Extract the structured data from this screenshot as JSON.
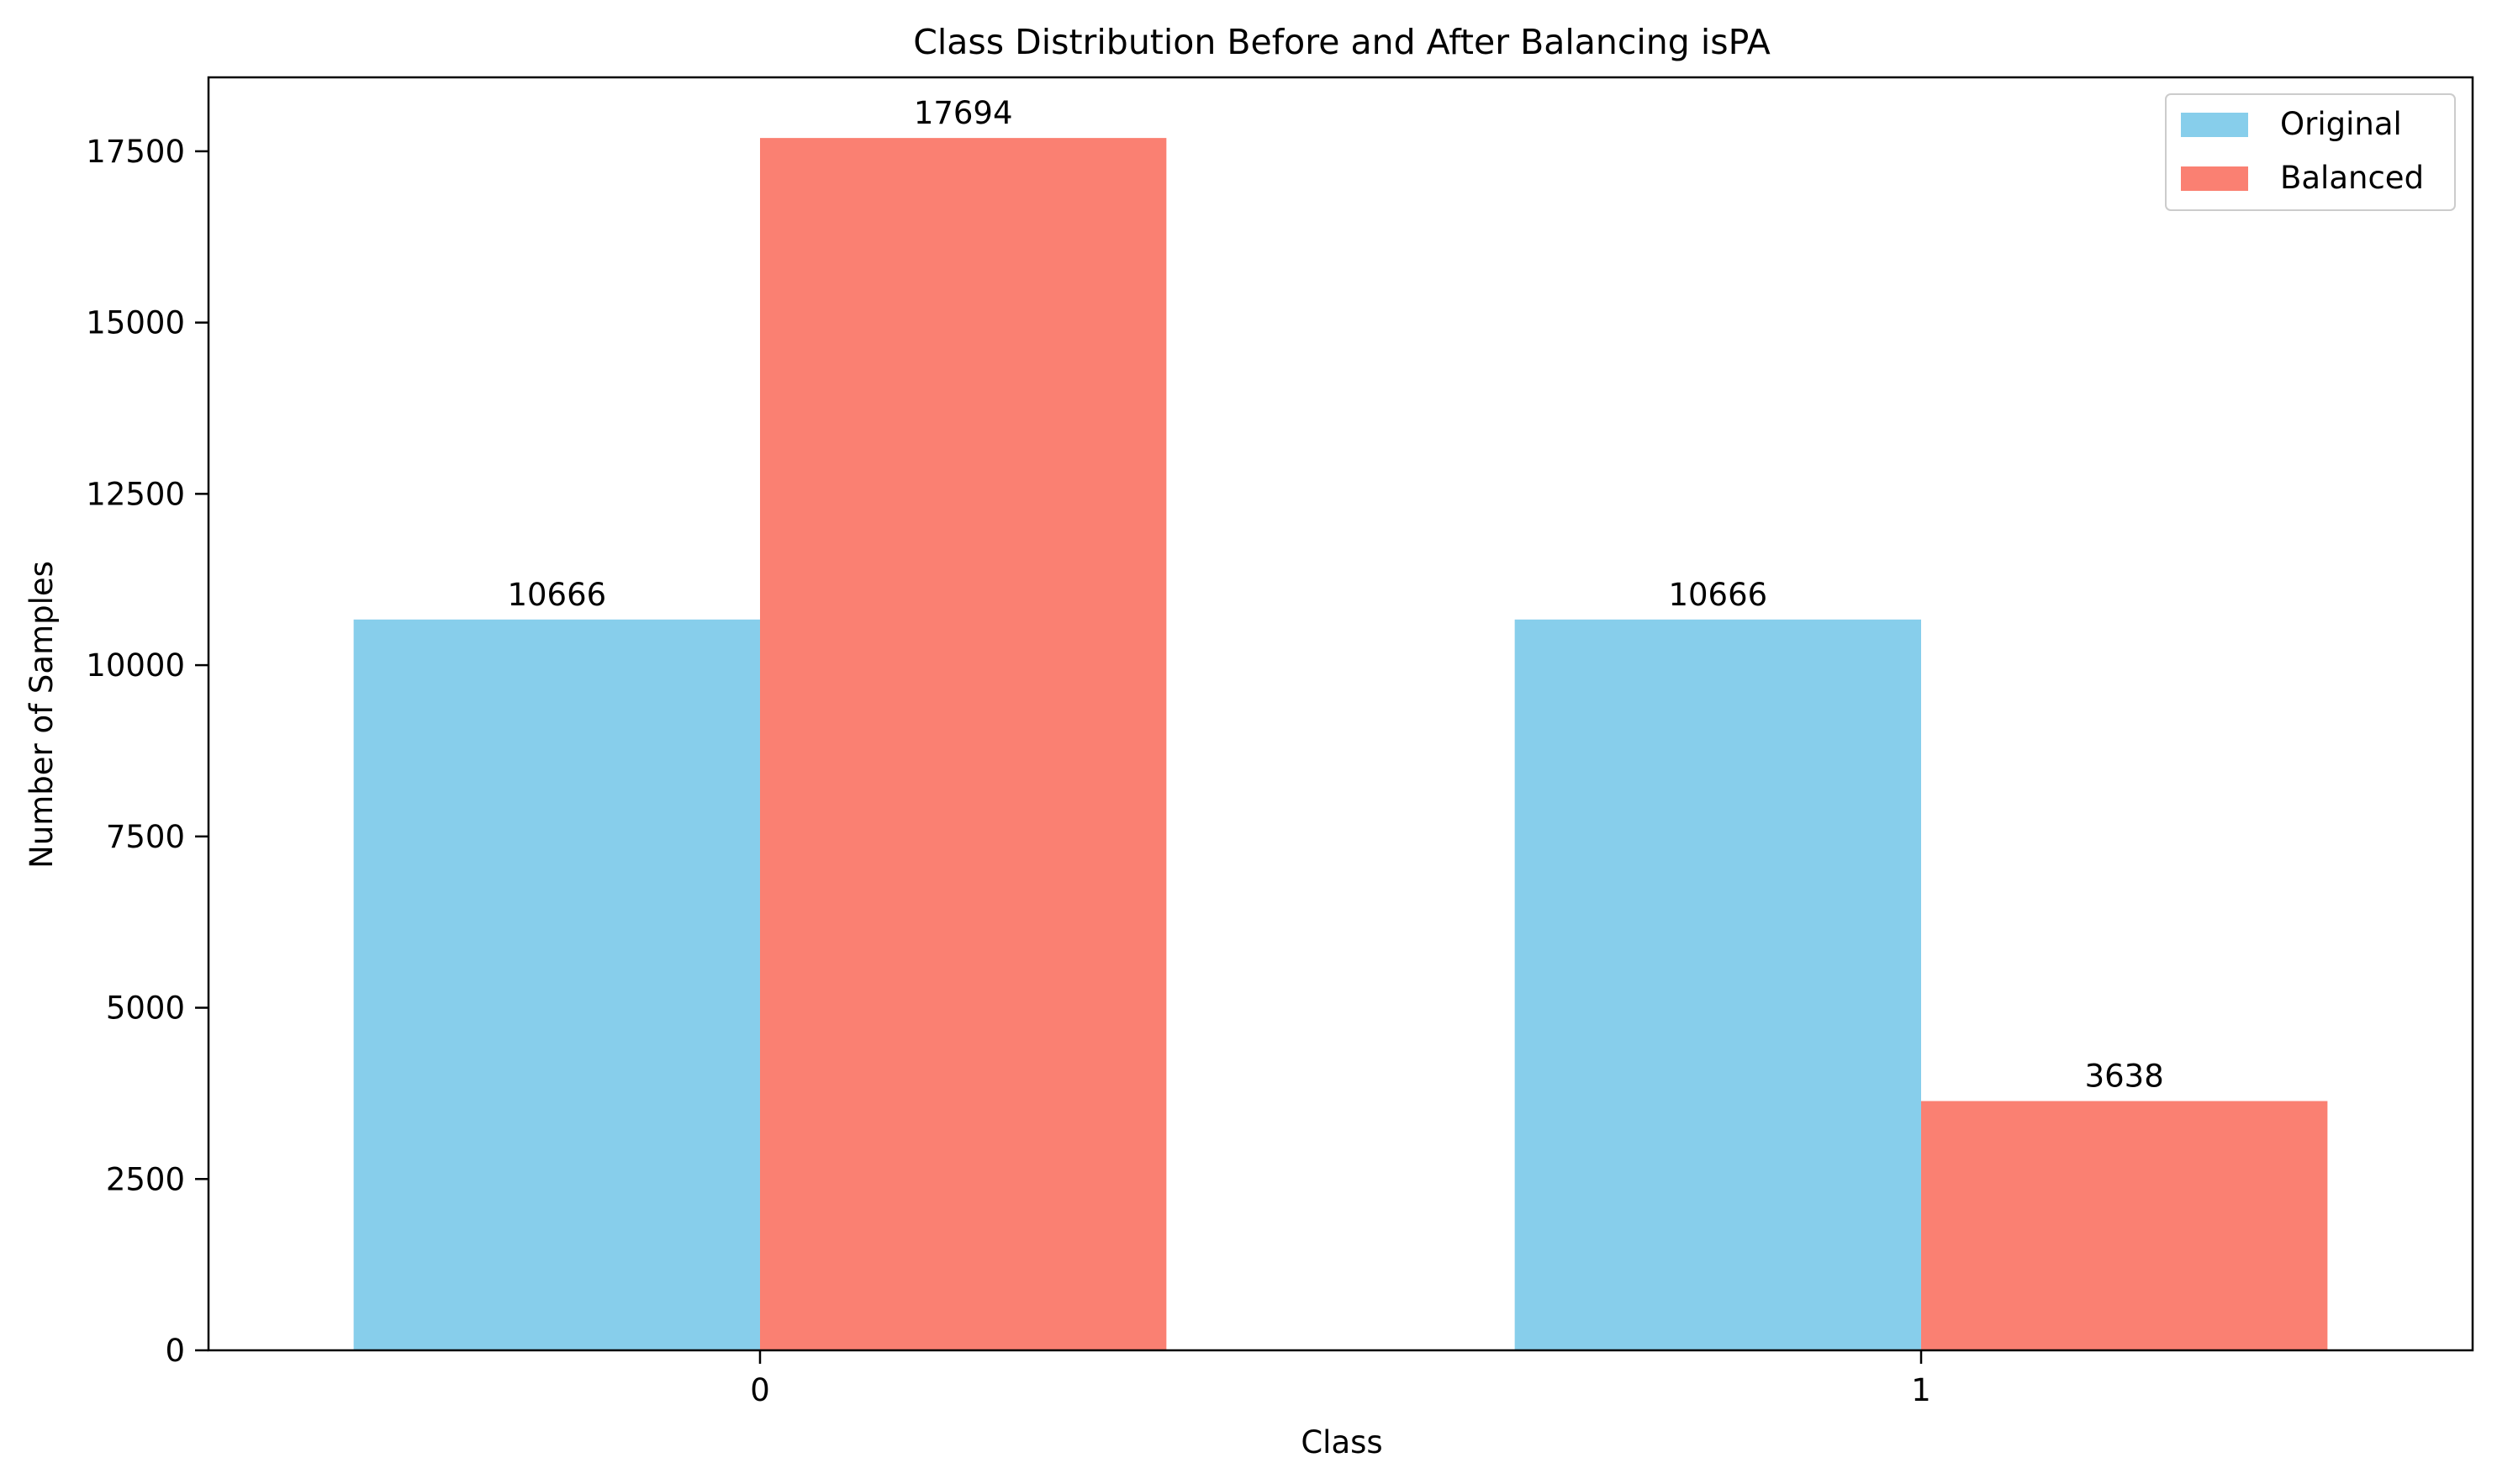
{
  "chart_data": {
    "type": "bar",
    "title": "Class Distribution Before and After Balancing isPA",
    "xlabel": "Class",
    "ylabel": "Number of Samples",
    "categories": [
      "0",
      "1"
    ],
    "series": [
      {
        "name": "Original",
        "values": [
          10666,
          10666
        ],
        "color": "#87CEEB"
      },
      {
        "name": "Balanced",
        "values": [
          17694,
          3638
        ],
        "color": "#FA8072"
      }
    ],
    "ylim": [
      0,
      18579
    ],
    "yticks": [
      0,
      2500,
      5000,
      7500,
      10000,
      12500,
      15000,
      17500
    ],
    "legend": "top-right",
    "grid": false
  }
}
